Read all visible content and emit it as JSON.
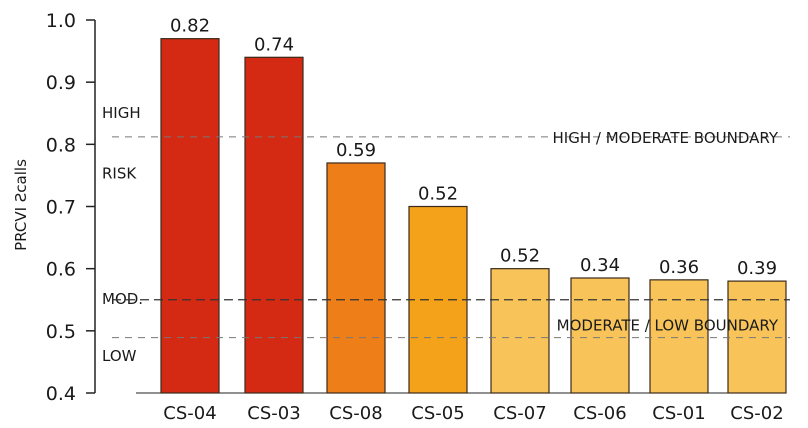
{
  "chart_data": {
    "type": "bar",
    "ylabel": "PRCVI Ƨcalls",
    "ylim": [
      0.4,
      1.0
    ],
    "yticks": [
      "1.0",
      "0.9",
      "0.8",
      "0.7",
      "0.6",
      "0.5",
      "0.4"
    ],
    "categories": [
      "CS-04",
      "CS-03",
      "CS-08",
      "CS-05",
      "CS-07",
      "CS-06",
      "CS-01",
      "CS-02"
    ],
    "bar_heights": [
      0.97,
      0.94,
      0.77,
      0.7,
      0.6,
      0.585,
      0.582,
      0.58
    ],
    "data_labels": [
      "0.82",
      "0.74",
      "0.59",
      "0.52",
      "0.52",
      "0.34",
      "0.36",
      "0.39"
    ],
    "bar_colors": [
      "#d42a14",
      "#d42a14",
      "#ee7e18",
      "#f3a21a",
      "#f8c45a",
      "#f8c45a",
      "#f8c45a",
      "#f8c45a"
    ],
    "bar_stroke": "#3a2a1a",
    "zone_labels": [
      "HIGH",
      "RISK",
      "MOD.",
      "LOW"
    ],
    "zone_label_values": [
      0.852,
      0.755,
      0.553,
      0.461
    ],
    "boundaries": [
      {
        "label": "HIGH / MODERATE BOUNDARY",
        "value": 0.812,
        "style": "dashed-light"
      },
      {
        "label": "",
        "value": 0.55,
        "style": "dashed-dark"
      },
      {
        "label": "MODERATE / LOW BOUNDARY",
        "value": 0.489,
        "style": "dashed-light"
      }
    ],
    "grid": false
  }
}
